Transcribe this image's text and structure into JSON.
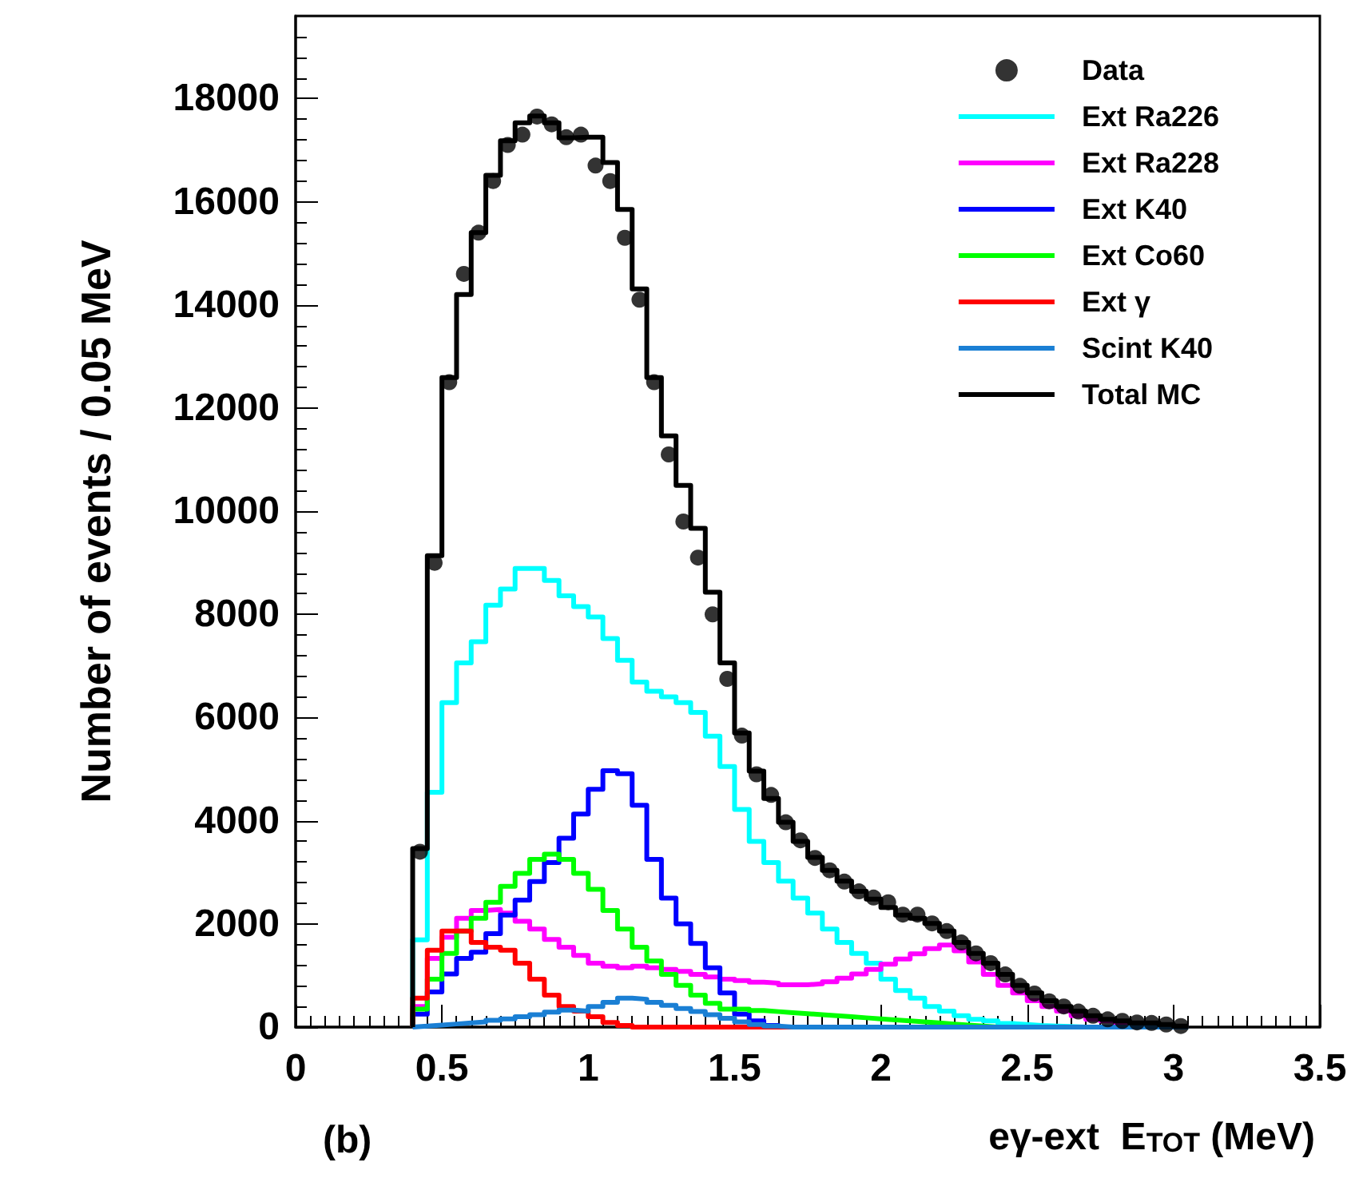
{
  "chart_data": {
    "type": "histogram",
    "xlabel": "eγ-ext  E$_{TOT}$ (MeV)",
    "ylabel": "Number of events / 0.05 MeV",
    "annotations": [
      "(b)"
    ],
    "bins": [
      0.4,
      0.45,
      0.5,
      0.55,
      0.6,
      0.65,
      0.7,
      0.75,
      0.8,
      0.85,
      0.9,
      0.95,
      1.0,
      1.05,
      1.1,
      1.15,
      1.2,
      1.25,
      1.3,
      1.35,
      1.4,
      1.45,
      1.5,
      1.55,
      1.6,
      1.65,
      1.7,
      1.75,
      1.8,
      1.85,
      1.9,
      1.95,
      2.0,
      2.05,
      2.1,
      2.15,
      2.2,
      2.25,
      2.3,
      2.35,
      2.4,
      2.45,
      2.5,
      2.55,
      2.6,
      2.65,
      2.7,
      2.75,
      2.8,
      2.85,
      2.9,
      2.95,
      3.0,
      3.05
    ],
    "series": [
      {
        "name": "Data",
        "type": "scatter",
        "color": "#000000",
        "marker": "circle",
        "x": [
          0.425,
          0.475,
          0.525,
          0.575,
          0.625,
          0.675,
          0.725,
          0.775,
          0.825,
          0.875,
          0.925,
          0.975,
          1.025,
          1.075,
          1.125,
          1.175,
          1.225,
          1.275,
          1.325,
          1.375,
          1.425,
          1.475,
          1.525,
          1.575,
          1.625,
          1.675,
          1.725,
          1.775,
          1.825,
          1.875,
          1.925,
          1.975,
          2.025,
          2.075,
          2.125,
          2.175,
          2.225,
          2.275,
          2.325,
          2.375,
          2.425,
          2.475,
          2.525,
          2.575,
          2.625,
          2.675,
          2.725,
          2.775,
          2.825,
          2.875,
          2.925,
          2.975,
          3.025
        ],
        "values": [
          3400,
          9000,
          12500,
          14600,
          15400,
          16400,
          17100,
          17300,
          17650,
          17500,
          17250,
          17300,
          16700,
          16400,
          15300,
          14100,
          12500,
          11100,
          9800,
          9100,
          8000,
          6750,
          5650,
          4900,
          4500,
          3970,
          3620,
          3280,
          3040,
          2820,
          2630,
          2510,
          2420,
          2180,
          2180,
          2010,
          1860,
          1640,
          1430,
          1240,
          1020,
          800,
          650,
          500,
          400,
          300,
          220,
          150,
          120,
          90,
          80,
          50,
          20
        ]
      },
      {
        "name": "Ext Ra226",
        "color": "#00ffff",
        "values": [
          1690,
          4550,
          6290,
          7060,
          7470,
          8180,
          8490,
          8890,
          8890,
          8660,
          8360,
          8150,
          7950,
          7530,
          7110,
          6690,
          6510,
          6400,
          6290,
          6100,
          5640,
          5050,
          4220,
          3600,
          3190,
          2830,
          2500,
          2210,
          1900,
          1640,
          1430,
          1240,
          930,
          710,
          560,
          400,
          310,
          220,
          150,
          120,
          70,
          50,
          30,
          20,
          10,
          0,
          0,
          0,
          0,
          0,
          0,
          0,
          0
        ]
      },
      {
        "name": "Ext Ra228",
        "color": "#ff00ff",
        "values": [
          400,
          1330,
          1740,
          2110,
          2260,
          2280,
          2210,
          2050,
          1900,
          1700,
          1550,
          1390,
          1240,
          1180,
          1150,
          1180,
          1150,
          1120,
          1080,
          1020,
          970,
          930,
          900,
          870,
          850,
          820,
          820,
          840,
          880,
          950,
          1030,
          1120,
          1220,
          1320,
          1420,
          1520,
          1590,
          1480,
          1260,
          1020,
          810,
          660,
          510,
          400,
          310,
          220,
          150,
          120,
          80,
          60,
          40,
          20,
          10
        ]
      },
      {
        "name": "Ext K40",
        "color": "#0000ff",
        "values": [
          250,
          680,
          1030,
          1330,
          1450,
          1810,
          2170,
          2460,
          2820,
          3190,
          3660,
          4130,
          4610,
          4970,
          4910,
          4300,
          3250,
          2500,
          2000,
          1620,
          1150,
          660,
          250,
          120,
          30,
          0,
          0,
          0,
          0,
          0,
          0,
          0,
          0,
          0,
          0,
          0,
          0,
          0,
          0,
          0,
          0,
          0,
          0,
          0,
          0,
          0,
          0,
          0,
          0,
          0,
          0,
          0,
          0
        ]
      },
      {
        "name": "Ext Co60",
        "color": "#00ff00",
        "values": [
          350,
          930,
          1430,
          1860,
          2110,
          2420,
          2730,
          2980,
          3250,
          3350,
          3250,
          2980,
          2670,
          2260,
          1900,
          1550,
          1280,
          1020,
          810,
          620,
          460,
          350,
          350,
          320,
          300,
          280,
          260,
          240,
          220,
          200,
          180,
          160,
          140,
          120,
          100,
          80,
          60,
          40,
          20,
          0,
          0,
          0,
          0,
          0,
          0,
          0,
          0,
          0,
          0,
          0,
          0,
          0,
          0
        ]
      },
      {
        "name": "Ext γ",
        "color": "#ff0000",
        "values": [
          560,
          1490,
          1860,
          1860,
          1640,
          1550,
          1490,
          1240,
          930,
          620,
          400,
          310,
          200,
          90,
          30,
          0,
          0,
          0,
          0,
          0,
          0,
          0,
          0,
          0,
          0,
          0,
          0,
          0,
          0,
          0,
          0,
          0,
          0,
          0,
          0,
          0,
          0,
          0,
          0,
          0,
          0,
          0,
          0,
          0,
          0,
          0,
          0,
          0,
          0,
          0,
          0,
          0,
          0
        ]
      },
      {
        "name": "Scint K40",
        "color": "#1a7fd4",
        "values": [
          20,
          40,
          60,
          80,
          100,
          130,
          160,
          200,
          240,
          290,
          330,
          310,
          400,
          480,
          560,
          540,
          480,
          420,
          360,
          300,
          240,
          170,
          100,
          50,
          20,
          0,
          0,
          0,
          0,
          0,
          0,
          0,
          0,
          0,
          0,
          0,
          0,
          0,
          0,
          0,
          0,
          0,
          0,
          0,
          0,
          0,
          0,
          0,
          0,
          0,
          0,
          0,
          0
        ]
      },
      {
        "name": "Total MC",
        "color": "#000000",
        "values": [
          3460,
          9140,
          12590,
          14200,
          15400,
          16510,
          17180,
          17530,
          17660,
          17530,
          17240,
          17250,
          17250,
          16760,
          15850,
          14310,
          12590,
          11460,
          10500,
          9670,
          8430,
          7060,
          5700,
          4960,
          4430,
          3970,
          3600,
          3290,
          3040,
          2830,
          2630,
          2480,
          2320,
          2170,
          2110,
          2010,
          1860,
          1640,
          1430,
          1240,
          1020,
          810,
          660,
          510,
          400,
          310,
          220,
          150,
          120,
          80,
          80,
          50,
          20
        ]
      }
    ],
    "xlim": [
      0,
      3.5
    ],
    "xticks": [
      0,
      0.5,
      1,
      1.5,
      2,
      2.5,
      3,
      3.5
    ],
    "ylim": [
      0,
      19600
    ],
    "yticks": [
      0,
      2000,
      4000,
      6000,
      8000,
      10000,
      12000,
      14000,
      16000,
      18000
    ],
    "grid": false,
    "legend": "top right"
  }
}
